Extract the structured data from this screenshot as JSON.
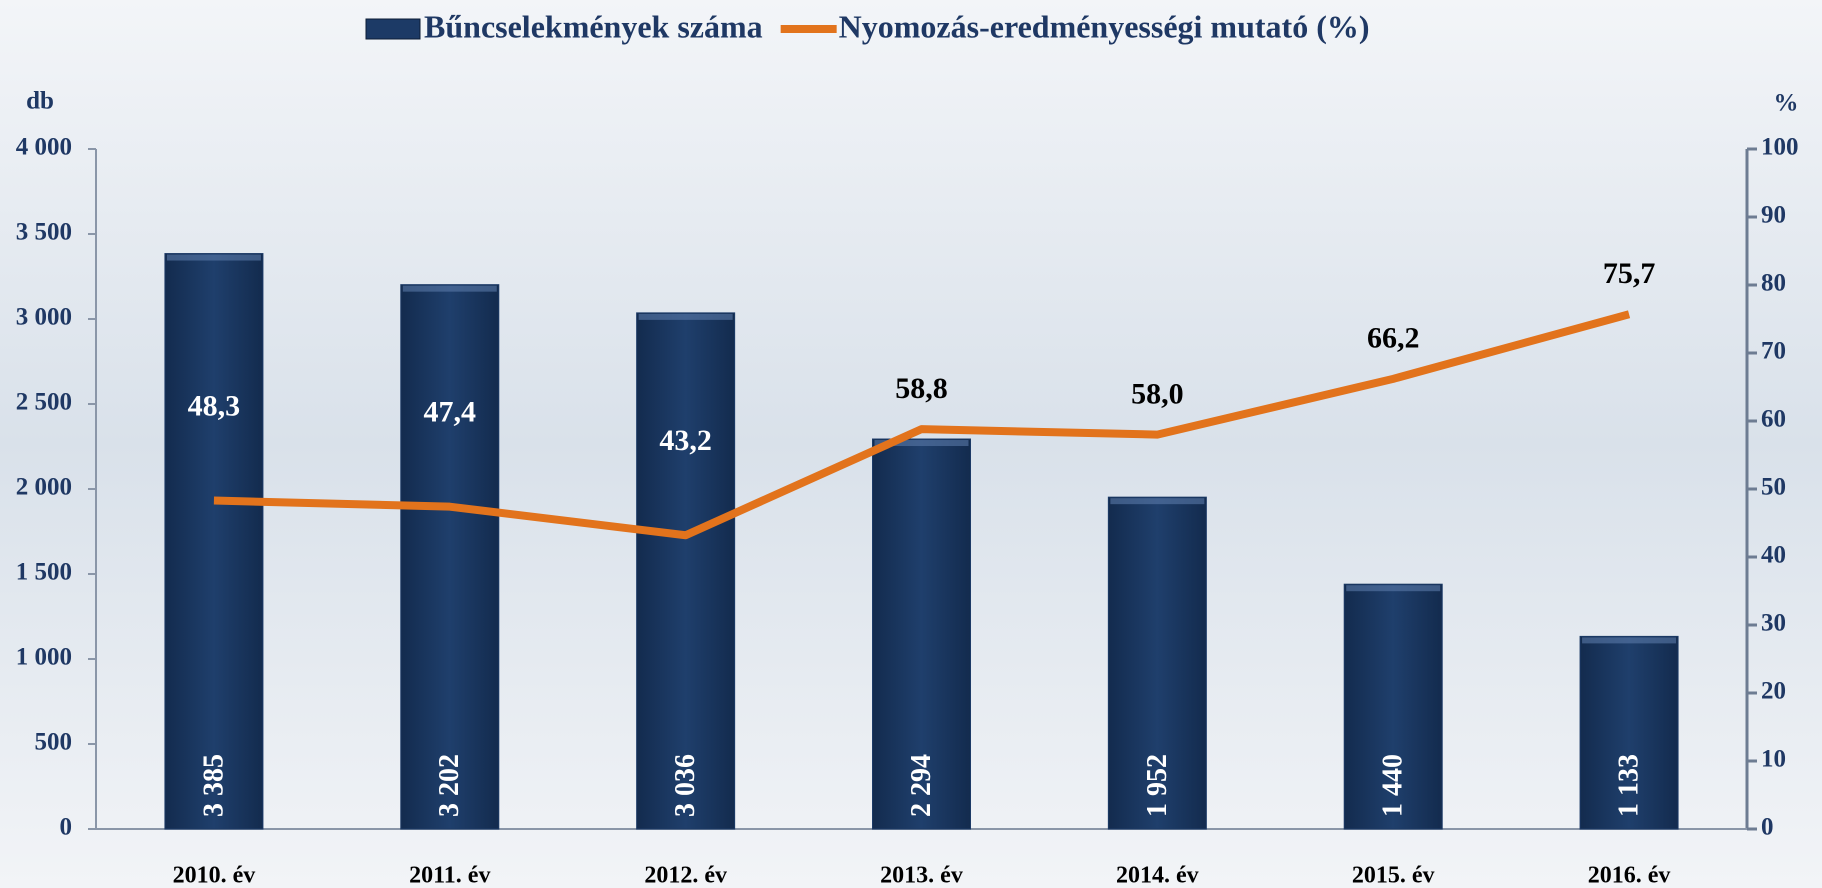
{
  "chart_data": {
    "type": "bar-line",
    "categories": [
      "2010. év",
      "2011. év",
      "2012. év",
      "2013. év",
      "2014. év",
      "2015. év",
      "2016. év"
    ],
    "series": [
      {
        "name": "Bűncselekmények száma",
        "type": "bar",
        "color": "#1c3a66",
        "values": [
          3385,
          3202,
          3036,
          2294,
          1952,
          1440,
          1133
        ],
        "value_labels": [
          "3 385",
          "3 202",
          "3 036",
          "2 294",
          "1 952",
          "1 440",
          "1 133"
        ]
      },
      {
        "name": "Nyomozás-eredményességi mutató (%)",
        "type": "line",
        "axis": "y2",
        "color": "#e2731c",
        "values": [
          48.3,
          47.4,
          43.2,
          58.8,
          58.0,
          66.2,
          75.7
        ],
        "value_labels": [
          "48,3",
          "47,4",
          "43,2",
          "58,8",
          "58,0",
          "66,2",
          "75,7"
        ]
      }
    ],
    "ylabel": "db",
    "y2label": "%",
    "ylim": [
      0,
      4000
    ],
    "yticks": [
      0,
      500,
      {
        "value": 1000,
        "label": "1 000"
      },
      {
        "value": 1500,
        "label": "1 500"
      },
      {
        "value": 2000,
        "label": "2 000"
      },
      {
        "value": 2500,
        "label": "2 500"
      },
      {
        "value": 3000,
        "label": "3 000"
      },
      {
        "value": 3500,
        "label": "3 500"
      },
      {
        "value": 4000,
        "label": "4 000"
      }
    ],
    "y2lim": [
      0,
      100
    ],
    "y2ticks": [
      0,
      10,
      20,
      30,
      40,
      50,
      60,
      70,
      80,
      90,
      100
    ],
    "legend": "top"
  }
}
